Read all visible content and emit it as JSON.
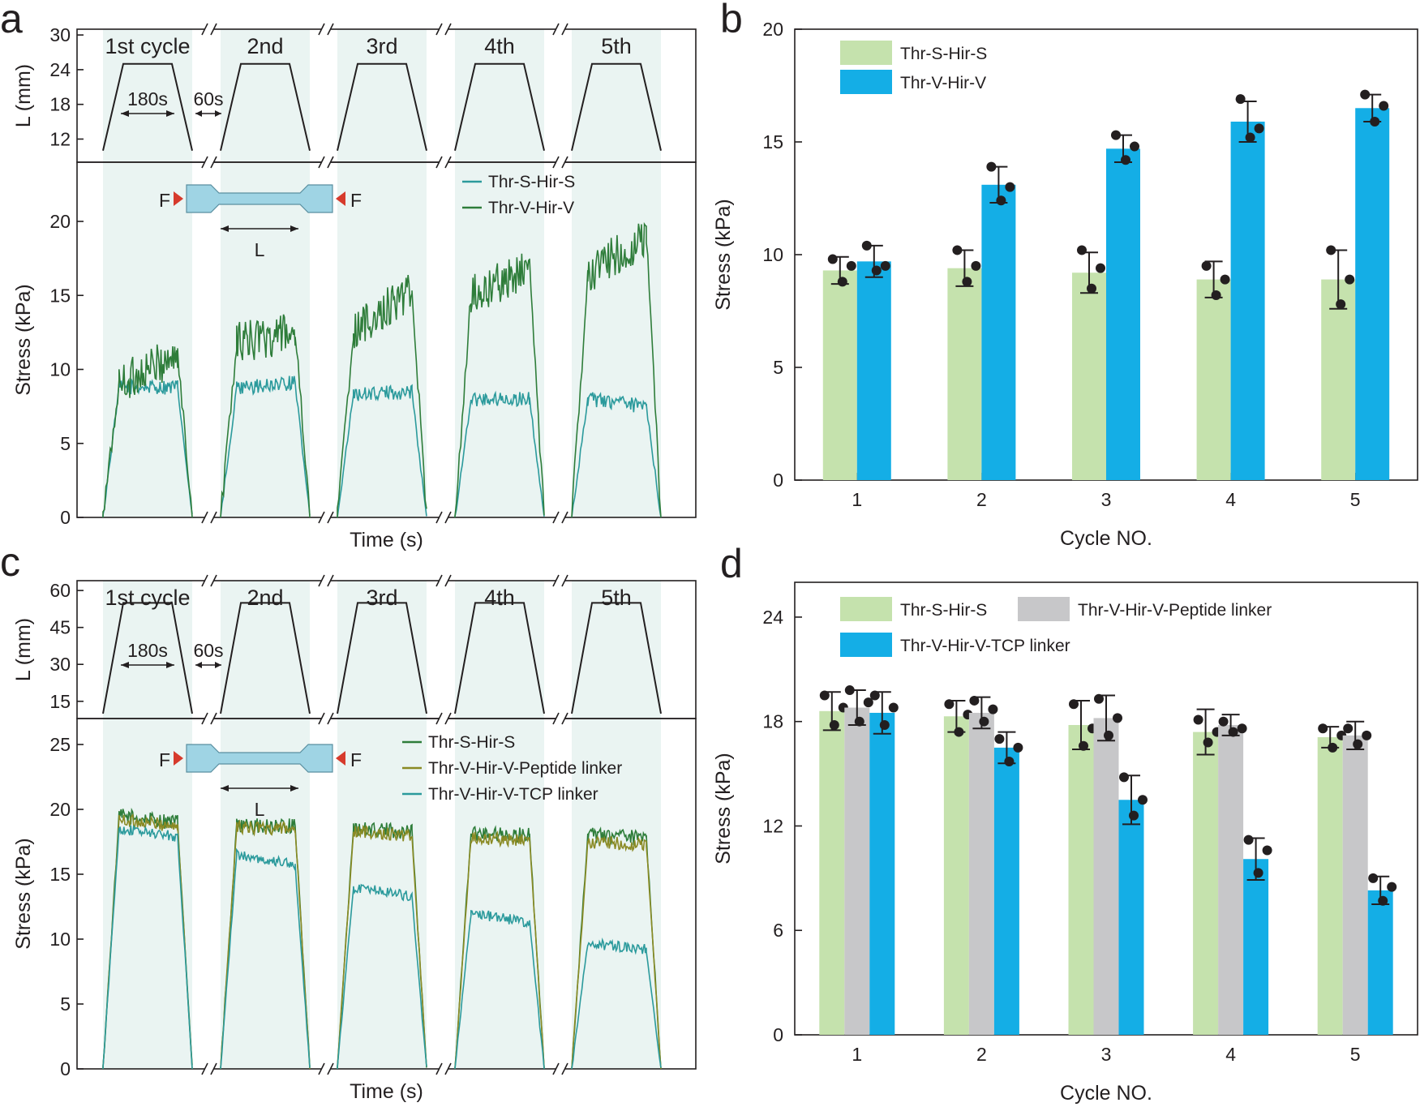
{
  "colors": {
    "thr_s_bar": "#c5e2ad",
    "thr_v_bar": "#14aee6",
    "peptide_bar": "#c7c7c9",
    "tcp_bar": "#14aee6",
    "trace_s": "#2b9a9c",
    "trace_v": "#2e7d3a",
    "trace_pep": "#8a8a24",
    "band": "#eaf4f2",
    "arrow": "#d63a2c",
    "specimen": "#9fd4e4"
  },
  "panels": {
    "a": {
      "letter": "a",
      "top_ylabel": "L (mm)",
      "top_yticks": [
        "30",
        "24",
        "18",
        "12"
      ],
      "cycle_labels": [
        "1st cycle",
        "2nd",
        "3rd",
        "4th",
        "5th"
      ],
      "hold_label": "180s",
      "rest_label": "60s",
      "force_label": "F",
      "length_label": "L",
      "ylabel": "Stress (kPa)",
      "xlabel": "Time (s)",
      "yticks": [
        "0",
        "5",
        "10",
        "15",
        "20"
      ],
      "legend": [
        "Thr-S-Hir-S",
        "Thr-V-Hir-V"
      ]
    },
    "c": {
      "letter": "c",
      "top_ylabel": "L (mm)",
      "top_yticks": [
        "60",
        "45",
        "30",
        "15"
      ],
      "cycle_labels": [
        "1st cycle",
        "2nd",
        "3rd",
        "4th",
        "5th"
      ],
      "hold_label": "180s",
      "rest_label": "60s",
      "force_label": "F",
      "length_label": "L",
      "ylabel": "Stress (kPa)",
      "xlabel": "Time (s)",
      "yticks": [
        "0",
        "5",
        "10",
        "15",
        "20",
        "25"
      ],
      "legend": [
        "Thr-S-Hir-S",
        "Thr-V-Hir-V-Peptide linker",
        "Thr-V-Hir-V-TCP linker"
      ]
    }
  },
  "chart_data": [
    {
      "panel": "a",
      "type": "line",
      "xlabel": "Time (s)",
      "ylabel": "Stress (kPa)",
      "ylim": [
        0,
        24
      ],
      "x_broken_axis": true,
      "cycles": [
        "1st cycle",
        "2nd",
        "3rd",
        "4th",
        "5th"
      ],
      "series": [
        {
          "name": "Thr-S-Hir-S",
          "plateau_start": [
            8.8,
            8.7,
            8.3,
            8.0,
            8.0
          ],
          "plateau_end": [
            8.8,
            9.1,
            8.5,
            8.0,
            7.5
          ]
        },
        {
          "name": "Thr-V-Hir-V",
          "plateau_start": [
            9.0,
            11.8,
            12.5,
            15.0,
            16.5
          ],
          "plateau_end": [
            11.0,
            12.5,
            15.5,
            16.8,
            19.0
          ]
        }
      ],
      "top_subplot": {
        "ylabel": "L (mm)",
        "yticks": [
          30,
          24,
          18,
          12
        ],
        "strain_profile": {
          "min": 10,
          "max": 25
        },
        "hold_time": "180s",
        "rest_time": "60s"
      }
    },
    {
      "panel": "b",
      "type": "bar",
      "xlabel": "Cycle NO.",
      "ylabel": "Stress (kPa)",
      "ylim": [
        0,
        20
      ],
      "yticks": [
        0,
        5,
        10,
        15,
        20
      ],
      "categories": [
        "1",
        "2",
        "3",
        "4",
        "5"
      ],
      "legend_position": "top-left",
      "series": [
        {
          "name": "Thr-S-Hir-S",
          "values": [
            9.3,
            9.4,
            9.2,
            8.9,
            8.9
          ],
          "errors": [
            0.6,
            0.8,
            0.9,
            0.8,
            1.3
          ],
          "points": [
            [
              9.8,
              9.5,
              8.8
            ],
            [
              10.2,
              9.5,
              8.8
            ],
            [
              10.2,
              9.4,
              8.5
            ],
            [
              9.5,
              8.9,
              8.2
            ],
            [
              10.2,
              8.9,
              7.8
            ]
          ]
        },
        {
          "name": "Thr-V-Hir-V",
          "values": [
            9.7,
            13.1,
            14.7,
            15.9,
            16.5
          ],
          "errors": [
            0.7,
            0.8,
            0.6,
            0.9,
            0.6
          ],
          "points": [
            [
              10.4,
              9.5,
              9.3
            ],
            [
              13.9,
              13.0,
              12.4
            ],
            [
              15.3,
              14.8,
              14.2
            ],
            [
              16.9,
              15.6,
              15.2
            ],
            [
              17.1,
              16.6,
              15.9
            ]
          ]
        }
      ]
    },
    {
      "panel": "c",
      "type": "line",
      "xlabel": "Time (s)",
      "ylabel": "Stress (kPa)",
      "ylim": [
        0,
        27
      ],
      "x_broken_axis": true,
      "cycles": [
        "1st cycle",
        "2nd",
        "3rd",
        "4th",
        "5th"
      ],
      "series": [
        {
          "name": "Thr-S-Hir-S",
          "plateau_start": [
            19.5,
            18.7,
            18.5,
            18.2,
            18.0
          ],
          "plateau_end": [
            19.0,
            18.7,
            18.3,
            18.0,
            17.8
          ]
        },
        {
          "name": "Thr-V-Hir-V-Peptide linker",
          "plateau_start": [
            19.2,
            18.6,
            18.3,
            17.8,
            17.5
          ],
          "plateau_end": [
            18.7,
            18.5,
            18.0,
            17.6,
            17.3
          ]
        },
        {
          "name": "Thr-V-Hir-V-TCP linker",
          "plateau_start": [
            18.5,
            16.5,
            14.0,
            12.0,
            9.7
          ],
          "plateau_end": [
            17.9,
            15.7,
            13.3,
            11.3,
            9.2
          ]
        }
      ],
      "top_subplot": {
        "ylabel": "L (mm)",
        "yticks": [
          60,
          45,
          30,
          15
        ],
        "strain_profile": {
          "min": 10,
          "max": 55
        },
        "hold_time": "180s",
        "rest_time": "60s"
      }
    },
    {
      "panel": "d",
      "type": "bar",
      "xlabel": "Cycle NO.",
      "ylabel": "Stress (kPa)",
      "ylim": [
        0,
        26
      ],
      "yticks": [
        0,
        6,
        12,
        18,
        24
      ],
      "categories": [
        "1",
        "2",
        "3",
        "4",
        "5"
      ],
      "legend_position": "top-left",
      "series": [
        {
          "name": "Thr-S-Hir-S",
          "values": [
            18.6,
            18.3,
            17.8,
            17.4,
            17.1
          ],
          "errors": [
            1.1,
            0.9,
            1.4,
            1.3,
            0.6
          ],
          "points": [
            [
              19.5,
              18.8,
              17.8
            ],
            [
              19.0,
              18.4,
              17.4
            ],
            [
              19.0,
              17.6,
              16.6
            ],
            [
              18.1,
              17.4,
              16.8
            ],
            [
              17.6,
              17.2,
              16.5
            ]
          ]
        },
        {
          "name": "Thr-V-Hir-V-Peptide linker",
          "values": [
            18.8,
            18.5,
            18.2,
            17.8,
            17.2
          ],
          "errors": [
            1.0,
            0.9,
            1.3,
            0.6,
            0.8
          ],
          "points": [
            [
              19.8,
              19.1,
              18.0
            ],
            [
              19.2,
              18.7,
              18.0
            ],
            [
              19.3,
              18.2,
              17.2
            ],
            [
              18.0,
              17.6,
              17.4
            ],
            [
              17.6,
              17.2,
              16.7
            ]
          ]
        },
        {
          "name": "Thr-V-Hir-V-TCP linker",
          "values": [
            18.5,
            16.5,
            13.5,
            10.1,
            8.3
          ],
          "errors": [
            1.2,
            0.9,
            1.4,
            1.2,
            0.8
          ],
          "points": [
            [
              19.5,
              18.8,
              17.8
            ],
            [
              17.0,
              16.5,
              15.7
            ],
            [
              14.8,
              13.5,
              12.6
            ],
            [
              11.2,
              10.6,
              9.3
            ],
            [
              9.0,
              8.5,
              7.7
            ]
          ]
        }
      ]
    }
  ]
}
